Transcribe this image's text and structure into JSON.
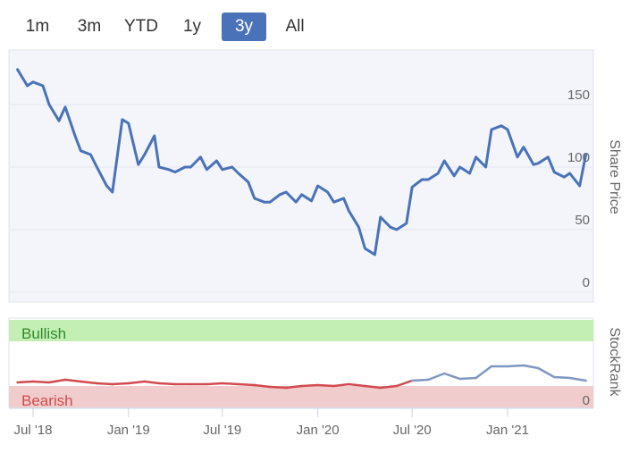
{
  "range_selector": {
    "buttons": [
      "1m",
      "3m",
      "YTD",
      "1y",
      "3y",
      "All"
    ],
    "selected": "3y"
  },
  "colors": {
    "price_line": "#4a72b8",
    "rank_bearish": "#d24a4f",
    "rank_neutral": "#7f97c1",
    "bullish_band": "#c3efb4",
    "bearish_band": "#f1cccc",
    "bullish_text": "#2e8b2e",
    "bearish_text": "#d24a4f"
  },
  "chart_data": [
    {
      "type": "line",
      "ylabel": "Share Price",
      "ylim": [
        0,
        175
      ],
      "yticks": [
        "0",
        "50",
        "100",
        "150"
      ],
      "x_ticks": [
        "Jul '18",
        "Jan '19",
        "Jul '19",
        "Jan '20",
        "Jul '20",
        "Jan '21"
      ],
      "x_range": [
        "2018-06-01",
        "2021-06-10"
      ],
      "series": [
        {
          "x": [
            "2018-06",
            "2018-06-20",
            "2018-07",
            "2018-07-20",
            "2018-08",
            "2018-08-20",
            "2018-09",
            "2018-09-20",
            "2018-10",
            "2018-10-20",
            "2018-11",
            "2018-11-20",
            "2018-12",
            "2018-12-20",
            "2019-01",
            "2019-01-20",
            "2019-02",
            "2019-02-20",
            "2019-03",
            "2019-03-20",
            "2019-04",
            "2019-04-20",
            "2019-05",
            "2019-05-20",
            "2019-06",
            "2019-06-20",
            "2019-07",
            "2019-07-20",
            "2019-08",
            "2019-08-20",
            "2019-09",
            "2019-09-20",
            "2019-10",
            "2019-10-20",
            "2019-11",
            "2019-11-20",
            "2019-12",
            "2019-12-20",
            "2020-01",
            "2020-01-20",
            "2020-02",
            "2020-02-20",
            "2020-03",
            "2020-03-20",
            "2020-04",
            "2020-04-20",
            "2020-05",
            "2020-05-20",
            "2020-06",
            "2020-06-20",
            "2020-07",
            "2020-07-20",
            "2020-08",
            "2020-08-20",
            "2020-09",
            "2020-09-20",
            "2020-10",
            "2020-10-20",
            "2020-11",
            "2020-11-20",
            "2020-12",
            "2020-12-20",
            "2021-01",
            "2021-01-20",
            "2021-02",
            "2021-02-20",
            "2021-03",
            "2021-03-20",
            "2021-04",
            "2021-04-20",
            "2021-05",
            "2021-05-20",
            "2021-06"
          ],
          "values": [
            178,
            165,
            168,
            165,
            150,
            137,
            148,
            125,
            113,
            110,
            100,
            85,
            80,
            138,
            135,
            102,
            110,
            125,
            100,
            98,
            96,
            100,
            100,
            108,
            98,
            105,
            98,
            100,
            95,
            88,
            75,
            72,
            72,
            78,
            80,
            72,
            78,
            73,
            85,
            80,
            72,
            75,
            65,
            52,
            35,
            30,
            60,
            52,
            50,
            55,
            84,
            90,
            90,
            95,
            105,
            93,
            100,
            95,
            108,
            100,
            130,
            133,
            130,
            108,
            116,
            102,
            103,
            108,
            96,
            92,
            95,
            85,
            110
          ]
        }
      ]
    },
    {
      "type": "line",
      "ylabel": "StockRank",
      "yticks": [
        "0"
      ],
      "bands": [
        "Bullish",
        "Bearish"
      ],
      "x_ticks": [
        "Jul '18",
        "Jan '19",
        "Jul '19",
        "Jan '20",
        "Jul '20",
        "Jan '21"
      ],
      "series": [
        {
          "x": [
            "2018-06",
            "2018-07",
            "2018-08",
            "2018-09",
            "2018-10",
            "2018-11",
            "2018-12",
            "2019-01",
            "2019-02",
            "2019-03",
            "2019-04",
            "2019-05",
            "2019-06",
            "2019-07",
            "2019-08",
            "2019-09",
            "2019-10",
            "2019-11",
            "2019-12",
            "2020-01",
            "2020-02",
            "2020-03",
            "2020-04",
            "2020-05",
            "2020-06",
            "2020-07",
            "2020-08",
            "2020-09",
            "2020-10",
            "2020-11",
            "2020-12",
            "2021-01",
            "2021-02",
            "2021-03",
            "2021-04",
            "2021-05",
            "2021-06"
          ],
          "values": [
            28,
            29,
            28,
            31,
            29,
            27,
            26,
            27,
            29,
            27,
            26,
            26,
            26,
            27,
            26,
            25,
            23,
            22,
            24,
            25,
            24,
            26,
            24,
            22,
            24,
            30,
            31,
            38,
            32,
            33,
            46,
            46,
            47,
            44,
            34,
            33,
            30
          ]
        }
      ]
    }
  ]
}
